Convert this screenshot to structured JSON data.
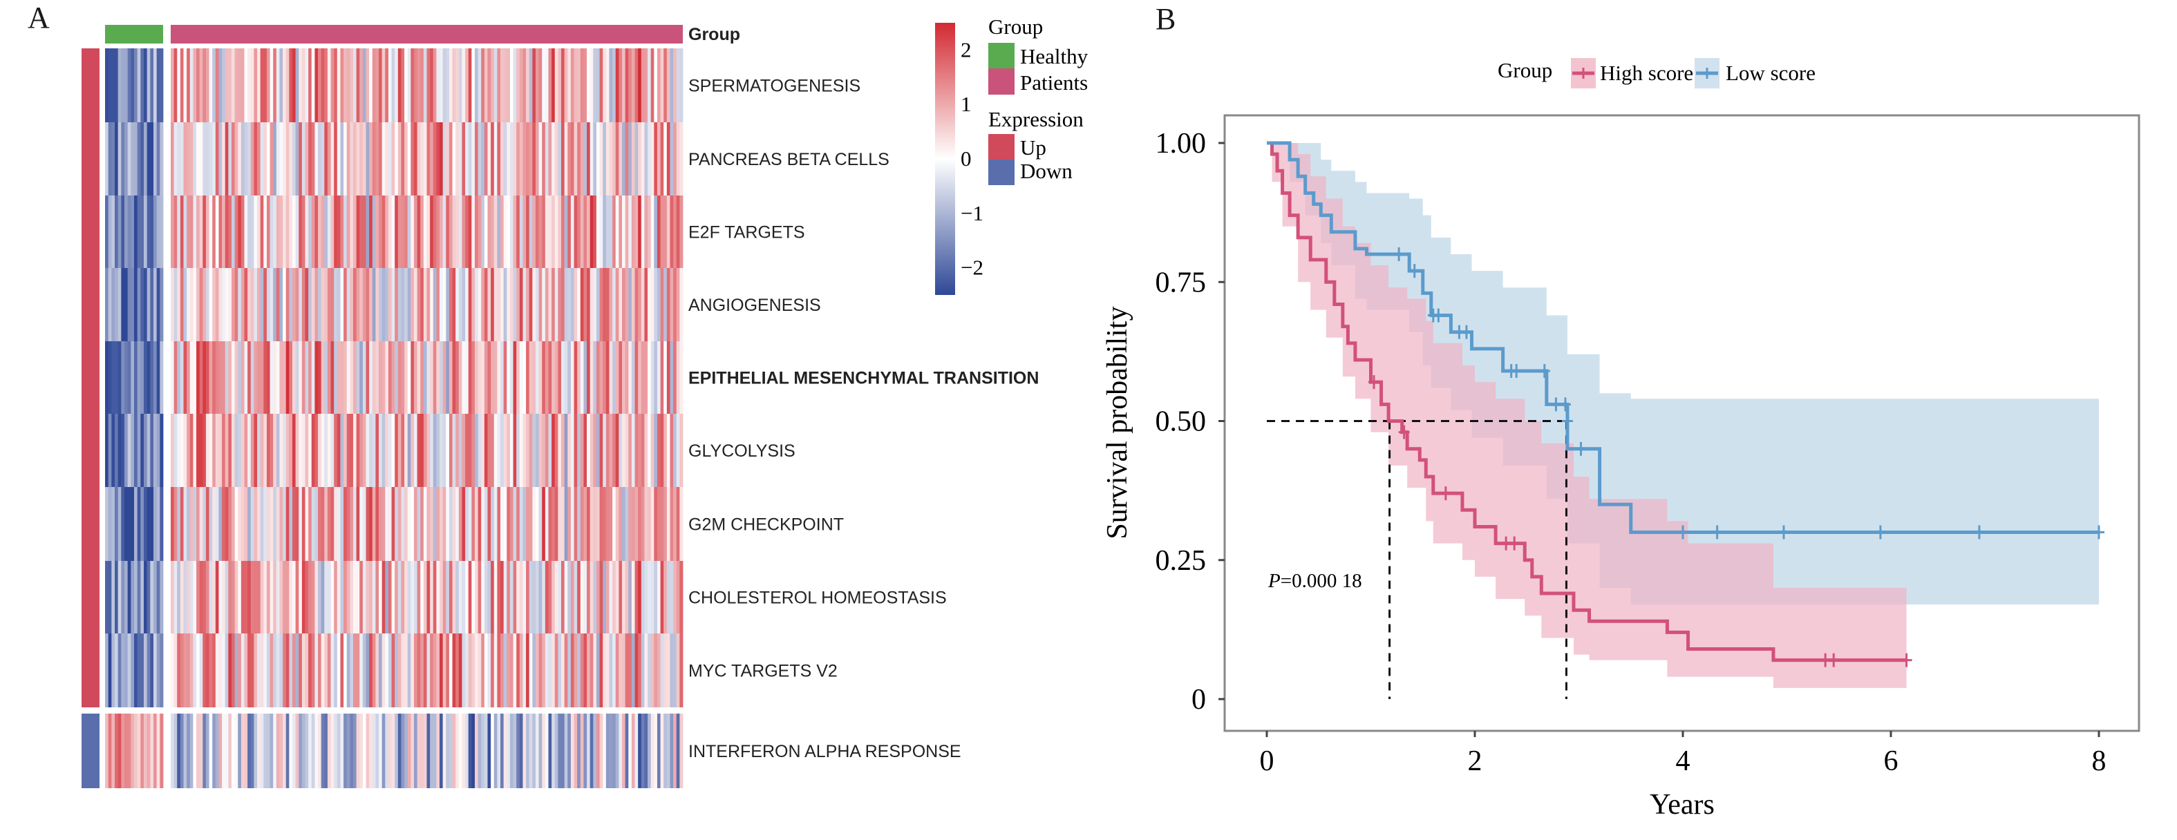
{
  "panels": {
    "a_label": "A",
    "b_label": "B"
  },
  "chart_data": [
    {
      "type": "heatmap",
      "title": "",
      "annotation_title": "Group",
      "groups": [
        {
          "name": "Healthy",
          "columns": 18,
          "color": "#5aab4f"
        },
        {
          "name": "Patients",
          "columns": 160,
          "color": "#c9537a"
        }
      ],
      "rows": [
        {
          "label": "SPERMATOGENESIS",
          "expression": "Up",
          "highlight": false
        },
        {
          "label": "PANCREAS BETA CELLS",
          "expression": "Up",
          "highlight": false
        },
        {
          "label": "E2F TARGETS",
          "expression": "Up",
          "highlight": false
        },
        {
          "label": "ANGIOGENESIS",
          "expression": "Up",
          "highlight": false
        },
        {
          "label": "EPITHELIAL MESENCHYMAL TRANSITION",
          "expression": "Up",
          "highlight": true
        },
        {
          "label": "GLYCOLYSIS",
          "expression": "Up",
          "highlight": false
        },
        {
          "label": "G2M CHECKPOINT",
          "expression": "Up",
          "highlight": false
        },
        {
          "label": "CHOLESTEROL HOMEOSTASIS",
          "expression": "Up",
          "highlight": false
        },
        {
          "label": "MYC TARGETS V2",
          "expression": "Up",
          "highlight": false
        },
        {
          "label": "INTERFERON ALPHA RESPONSE",
          "expression": "Down",
          "highlight": false
        }
      ],
      "highlight_color": "#d0262f",
      "colorbar": {
        "range": [
          -2.5,
          2.5
        ],
        "ticks": [
          2,
          1,
          0,
          -1,
          -2
        ],
        "tick_labels": [
          "2",
          "1",
          "0",
          "−1",
          "−2"
        ],
        "low_color": "#2f4896",
        "mid_color": "#ffffff",
        "high_color": "#d22a32"
      },
      "legend": {
        "group_title": "Group",
        "group_items": [
          {
            "label": "Healthy",
            "color": "#5aab4f"
          },
          {
            "label": "Patients",
            "color": "#c9537a"
          }
        ],
        "expression_title": "Expression",
        "expression_items": [
          {
            "label": "Up",
            "color": "#d04a5c"
          },
          {
            "label": "Down",
            "color": "#5a6eae"
          }
        ]
      }
    },
    {
      "type": "line",
      "subtype": "kaplan-meier",
      "title": "",
      "xlabel": "Years",
      "ylabel": "Survival probability",
      "xlim": [
        0,
        8
      ],
      "ylim": [
        0,
        1
      ],
      "xticks": [
        0,
        2,
        4,
        6,
        8
      ],
      "xtick_labels": [
        "0",
        "2",
        "4",
        "6",
        "8"
      ],
      "yticks": [
        0,
        0.25,
        0.5,
        0.75,
        1.0
      ],
      "ytick_labels": [
        "0",
        "0.25",
        "0.50",
        "0.75",
        "1.00"
      ],
      "grid": false,
      "legend_title": "Group",
      "legend_position": "top",
      "annotation": {
        "p_prefix": "P",
        "p_text": "=0.000 18"
      },
      "median_line_y": 0.5,
      "medians": [
        1.18,
        2.88
      ],
      "series": [
        {
          "name": "High score",
          "color": "#d2517a",
          "fill": "#f0b4c4",
          "steps": [
            [
              0,
              1.0
            ],
            [
              0.05,
              0.98
            ],
            [
              0.1,
              0.95
            ],
            [
              0.15,
              0.91
            ],
            [
              0.22,
              0.87
            ],
            [
              0.3,
              0.83
            ],
            [
              0.42,
              0.79
            ],
            [
              0.57,
              0.75
            ],
            [
              0.65,
              0.71
            ],
            [
              0.73,
              0.67
            ],
            [
              0.78,
              0.64
            ],
            [
              0.85,
              0.61
            ],
            [
              1.0,
              0.57
            ],
            [
              1.1,
              0.53
            ],
            [
              1.17,
              0.5
            ],
            [
              1.3,
              0.48
            ],
            [
              1.35,
              0.45
            ],
            [
              1.47,
              0.43
            ],
            [
              1.53,
              0.4
            ],
            [
              1.6,
              0.37
            ],
            [
              1.88,
              0.34
            ],
            [
              2.0,
              0.31
            ],
            [
              2.2,
              0.28
            ],
            [
              2.48,
              0.25
            ],
            [
              2.55,
              0.22
            ],
            [
              2.64,
              0.19
            ],
            [
              2.95,
              0.16
            ],
            [
              3.1,
              0.14
            ],
            [
              3.85,
              0.12
            ],
            [
              4.05,
              0.09
            ],
            [
              4.87,
              0.07
            ],
            [
              6.15,
              0.07
            ]
          ],
          "censored": [
            [
              1.03,
              0.57
            ],
            [
              1.32,
              0.48
            ],
            [
              1.72,
              0.37
            ],
            [
              2.3,
              0.28
            ],
            [
              2.38,
              0.28
            ],
            [
              5.37,
              0.07
            ],
            [
              5.45,
              0.07
            ],
            [
              6.15,
              0.07
            ]
          ],
          "ci": [
            [
              0,
              1.0,
              1.0
            ],
            [
              0.05,
              0.93,
              1.0
            ],
            [
              0.15,
              0.85,
              1.0
            ],
            [
              0.3,
              0.75,
              0.98
            ],
            [
              0.42,
              0.7,
              0.94
            ],
            [
              0.57,
              0.65,
              0.9
            ],
            [
              0.73,
              0.58,
              0.85
            ],
            [
              0.85,
              0.54,
              0.82
            ],
            [
              1.0,
              0.48,
              0.78
            ],
            [
              1.17,
              0.42,
              0.74
            ],
            [
              1.35,
              0.38,
              0.72
            ],
            [
              1.53,
              0.32,
              0.68
            ],
            [
              1.6,
              0.28,
              0.64
            ],
            [
              1.88,
              0.25,
              0.6
            ],
            [
              2.0,
              0.22,
              0.57
            ],
            [
              2.2,
              0.18,
              0.54
            ],
            [
              2.48,
              0.15,
              0.5
            ],
            [
              2.64,
              0.11,
              0.46
            ],
            [
              2.95,
              0.08,
              0.4
            ],
            [
              3.1,
              0.07,
              0.36
            ],
            [
              3.85,
              0.04,
              0.32
            ],
            [
              4.05,
              0.04,
              0.28
            ],
            [
              4.87,
              0.02,
              0.2
            ],
            [
              6.15,
              0.02,
              0.2
            ]
          ]
        },
        {
          "name": "Low score",
          "color": "#5b9bcc",
          "fill": "#c4d9ea",
          "steps": [
            [
              0,
              1.0
            ],
            [
              0.22,
              0.97
            ],
            [
              0.3,
              0.94
            ],
            [
              0.37,
              0.91
            ],
            [
              0.45,
              0.89
            ],
            [
              0.52,
              0.87
            ],
            [
              0.62,
              0.84
            ],
            [
              0.85,
              0.81
            ],
            [
              0.96,
              0.8
            ],
            [
              1.37,
              0.77
            ],
            [
              1.5,
              0.73
            ],
            [
              1.58,
              0.69
            ],
            [
              1.77,
              0.66
            ],
            [
              1.97,
              0.63
            ],
            [
              2.27,
              0.59
            ],
            [
              2.69,
              0.53
            ],
            [
              2.89,
              0.45
            ],
            [
              3.2,
              0.35
            ],
            [
              3.5,
              0.3
            ],
            [
              8.0,
              0.3
            ]
          ],
          "censored": [
            [
              1.27,
              0.8
            ],
            [
              1.42,
              0.77
            ],
            [
              1.6,
              0.69
            ],
            [
              1.65,
              0.69
            ],
            [
              1.85,
              0.66
            ],
            [
              1.92,
              0.66
            ],
            [
              2.35,
              0.59
            ],
            [
              2.4,
              0.59
            ],
            [
              2.67,
              0.59
            ],
            [
              2.78,
              0.53
            ],
            [
              2.87,
              0.53
            ],
            [
              2.89,
              0.5
            ],
            [
              3.02,
              0.45
            ],
            [
              4.0,
              0.3
            ],
            [
              4.33,
              0.3
            ],
            [
              4.97,
              0.3
            ],
            [
              5.9,
              0.3
            ],
            [
              6.85,
              0.3
            ],
            [
              8.0,
              0.3
            ]
          ],
          "ci": [
            [
              0,
              1.0,
              1.0
            ],
            [
              0.22,
              0.93,
              1.0
            ],
            [
              0.37,
              0.87,
              1.0
            ],
            [
              0.52,
              0.82,
              0.97
            ],
            [
              0.62,
              0.78,
              0.95
            ],
            [
              0.85,
              0.72,
              0.93
            ],
            [
              0.96,
              0.7,
              0.91
            ],
            [
              1.37,
              0.66,
              0.9
            ],
            [
              1.5,
              0.6,
              0.87
            ],
            [
              1.58,
              0.56,
              0.83
            ],
            [
              1.77,
              0.52,
              0.8
            ],
            [
              1.97,
              0.47,
              0.77
            ],
            [
              2.27,
              0.42,
              0.74
            ],
            [
              2.69,
              0.36,
              0.69
            ],
            [
              2.89,
              0.28,
              0.62
            ],
            [
              3.2,
              0.2,
              0.55
            ],
            [
              3.5,
              0.17,
              0.54
            ],
            [
              8.0,
              0.17,
              0.54
            ]
          ]
        }
      ]
    }
  ]
}
